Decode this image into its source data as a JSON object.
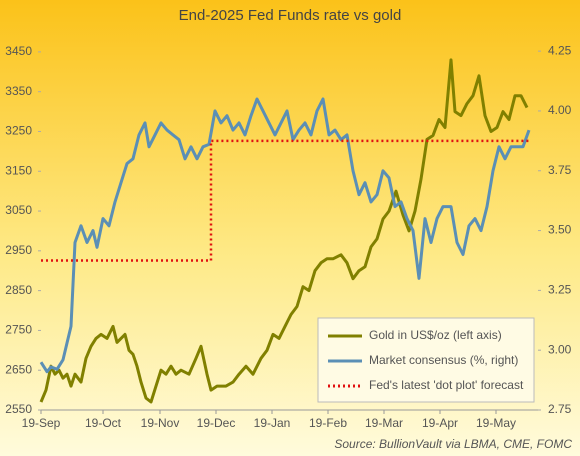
{
  "chart_data": {
    "type": "line",
    "title": "End-2025 Fed Funds rate vs gold",
    "source": "Source: BullionVault via LBMA, CME, FOMC",
    "xlim": [
      0,
      497
    ],
    "xticks": [
      {
        "value": 0,
        "label": "19-Sep"
      },
      {
        "value": 62,
        "label": "19-Oct"
      },
      {
        "value": 119,
        "label": "19-Nov"
      },
      {
        "value": 175,
        "label": "19-Dec"
      },
      {
        "value": 231,
        "label": "19-Jan"
      },
      {
        "value": 287,
        "label": "19-Feb"
      },
      {
        "value": 343,
        "label": "19-Mar"
      },
      {
        "value": 399,
        "label": "19-Apr"
      },
      {
        "value": 455,
        "label": "19-May"
      }
    ],
    "ylim": [
      2550,
      3500
    ],
    "yticks": [
      2550,
      2650,
      2750,
      2850,
      2950,
      3050,
      3150,
      3250,
      3350,
      3450
    ],
    "y2lim": [
      2.75,
      4.33
    ],
    "y2ticks": [
      {
        "value": 2.75,
        "label": "2.75"
      },
      {
        "value": 3.0,
        "label": "3.00"
      },
      {
        "value": 3.25,
        "label": "3.25"
      },
      {
        "value": 3.5,
        "label": "3.50"
      },
      {
        "value": 3.75,
        "label": "3.75"
      },
      {
        "value": 4.0,
        "label": "4.00"
      },
      {
        "value": 4.25,
        "label": "4.25"
      }
    ],
    "legend": "bottom-right",
    "series": [
      {
        "name": "Gold in US$/oz (left axis)",
        "color": "#808000",
        "dash": false,
        "x": [
          0,
          5,
          10,
          14,
          18,
          22,
          26,
          30,
          34,
          40,
          45,
          50,
          55,
          60,
          66,
          72,
          76,
          80,
          84,
          88,
          92,
          96,
          100,
          105,
          110,
          115,
          120,
          125,
          130,
          135,
          140,
          148,
          155,
          160,
          166,
          170,
          176,
          185,
          192,
          198,
          205,
          212,
          220,
          226,
          232,
          238,
          244,
          250,
          256,
          262,
          268,
          274,
          280,
          286,
          292,
          300,
          306,
          312,
          318,
          324,
          330,
          336,
          342,
          348,
          355,
          362,
          368,
          374,
          380,
          386,
          392,
          398,
          404,
          410,
          414,
          420,
          426,
          432,
          438,
          444,
          450,
          456,
          462,
          468,
          474,
          480,
          486
        ],
        "values": [
          2570,
          2600,
          2660,
          2640,
          2650,
          2630,
          2640,
          2610,
          2640,
          2620,
          2680,
          2710,
          2730,
          2740,
          2730,
          2760,
          2720,
          2730,
          2740,
          2700,
          2690,
          2660,
          2620,
          2580,
          2570,
          2610,
          2650,
          2640,
          2660,
          2640,
          2650,
          2640,
          2680,
          2710,
          2640,
          2600,
          2610,
          2610,
          2620,
          2640,
          2660,
          2640,
          2680,
          2700,
          2740,
          2730,
          2760,
          2790,
          2810,
          2860,
          2850,
          2900,
          2920,
          2930,
          2930,
          2940,
          2920,
          2880,
          2900,
          2910,
          2960,
          2980,
          3030,
          3050,
          3100,
          3040,
          3000,
          3050,
          3130,
          3230,
          3240,
          3280,
          3260,
          3430,
          3300,
          3290,
          3320,
          3340,
          3390,
          3290,
          3250,
          3260,
          3300,
          3280,
          3340,
          3340,
          3310
        ]
      },
      {
        "name": "Market consensus (%, right)",
        "color": "#5b8fb5",
        "axis": "y2",
        "dash": false,
        "x": [
          0,
          6,
          10,
          16,
          22,
          26,
          30,
          34,
          40,
          46,
          52,
          56,
          62,
          68,
          74,
          80,
          86,
          92,
          98,
          104,
          108,
          114,
          120,
          126,
          132,
          138,
          144,
          150,
          156,
          162,
          168,
          174,
          180,
          186,
          192,
          198,
          204,
          210,
          216,
          222,
          228,
          234,
          240,
          246,
          252,
          258,
          264,
          270,
          276,
          282,
          288,
          294,
          300,
          306,
          312,
          318,
          324,
          330,
          336,
          342,
          348,
          354,
          360,
          366,
          372,
          378,
          384,
          390,
          396,
          402,
          410,
          416,
          422,
          428,
          434,
          440,
          446,
          452,
          458,
          464,
          470,
          476,
          482,
          488
        ],
        "values": [
          2.95,
          2.91,
          2.93,
          2.92,
          2.96,
          3.03,
          3.1,
          3.45,
          3.52,
          3.45,
          3.5,
          3.43,
          3.55,
          3.52,
          3.62,
          3.7,
          3.78,
          3.8,
          3.9,
          3.95,
          3.85,
          3.9,
          3.95,
          3.92,
          3.9,
          3.88,
          3.8,
          3.85,
          3.8,
          3.85,
          3.86,
          4.0,
          3.95,
          3.98,
          3.92,
          3.95,
          3.9,
          3.98,
          4.05,
          4.0,
          3.95,
          3.9,
          3.95,
          4.0,
          3.88,
          3.92,
          3.95,
          3.9,
          4.0,
          4.05,
          3.9,
          3.92,
          3.88,
          3.9,
          3.75,
          3.65,
          3.7,
          3.62,
          3.65,
          3.75,
          3.72,
          3.6,
          3.62,
          3.55,
          3.5,
          3.3,
          3.55,
          3.45,
          3.55,
          3.6,
          3.6,
          3.45,
          3.4,
          3.52,
          3.55,
          3.5,
          3.6,
          3.75,
          3.85,
          3.8,
          3.85,
          3.85,
          3.85,
          3.92
        ]
      },
      {
        "name": "Fed's latest 'dot plot' forecast",
        "color": "#e01010",
        "axis": "y2",
        "dash": true,
        "x": [
          0,
          170,
          170,
          488
        ],
        "values": [
          3.375,
          3.375,
          3.875,
          3.875
        ]
      }
    ]
  }
}
